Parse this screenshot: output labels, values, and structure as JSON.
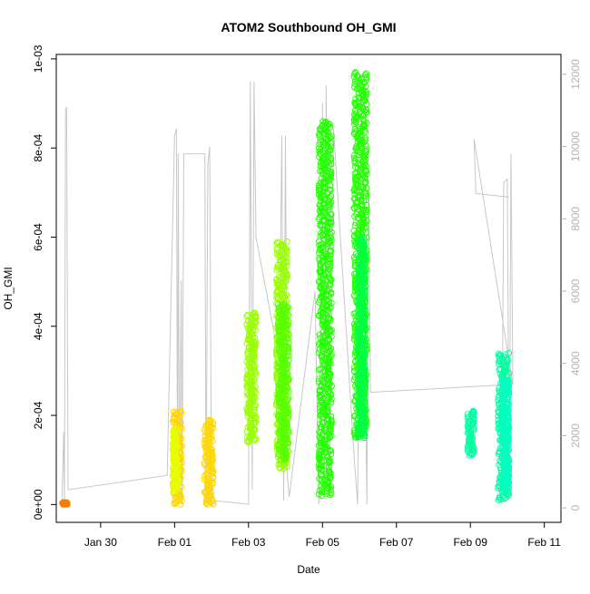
{
  "chart_data": {
    "type": "scatter",
    "title": "ATOM2 Southbound OH_GMI",
    "xlabel": "Date",
    "ylabel": "OH_GMI",
    "ylabel_right": "",
    "x_units": "days from Jan 28",
    "x_ticks": [
      {
        "label": "Jan 30",
        "value": 2
      },
      {
        "label": "Feb 01",
        "value": 4
      },
      {
        "label": "Feb 03",
        "value": 6
      },
      {
        "label": "Feb 05",
        "value": 8
      },
      {
        "label": "Feb 07",
        "value": 10
      },
      {
        "label": "Feb 09",
        "value": 12
      },
      {
        "label": "Feb 11",
        "value": 14
      }
    ],
    "y_ticks": [
      {
        "label": "0e+00",
        "value": 0
      },
      {
        "label": "2e-04",
        "value": 0.0002
      },
      {
        "label": "4e-04",
        "value": 0.0004
      },
      {
        "label": "6e-04",
        "value": 0.0006
      },
      {
        "label": "8e-04",
        "value": 0.0008
      },
      {
        "label": "1e-03",
        "value": 0.001
      }
    ],
    "y2_ticks": [
      {
        "label": "0",
        "value": 0
      },
      {
        "label": "2000",
        "value": 2000
      },
      {
        "label": "4000",
        "value": 4000
      },
      {
        "label": "6000",
        "value": 6000
      },
      {
        "label": "8000",
        "value": 8000
      },
      {
        "label": "10000",
        "value": 10000
      },
      {
        "label": "12000",
        "value": 12000
      }
    ],
    "xlim": [
      0.8,
      14.45
    ],
    "ylim": [
      -4e-05,
      0.00101
    ],
    "y2lim": [
      -400,
      12550
    ],
    "grid": false,
    "legend": "none",
    "series": [
      {
        "color": "#ff7a00",
        "segments": [
          {
            "x": [
              0.95,
              1.1
            ],
            "ymin": 0.0,
            "ymax": 5e-06
          }
        ]
      },
      {
        "color": "#ffd700",
        "segments": [
          {
            "x": [
              3.95,
              4.2
            ],
            "ymin": 0.0,
            "ymax": 0.00021
          },
          {
            "x": [
              4.8,
              5.05
            ],
            "ymin": 0.0,
            "ymax": 0.00019
          }
        ]
      },
      {
        "color": "#e6ff00",
        "segments": [
          {
            "x": [
              3.96,
              4.08
            ],
            "ymin": 3e-05,
            "ymax": 0.00017
          }
        ]
      },
      {
        "color": "#99ff00",
        "segments": [
          {
            "x": [
              5.95,
              6.2
            ],
            "ymin": 0.00014,
            "ymax": 0.00043
          },
          {
            "x": [
              6.75,
              7.05
            ],
            "ymin": 8e-05,
            "ymax": 0.00059
          }
        ]
      },
      {
        "color": "#55ff00",
        "segments": [
          {
            "x": [
              6.8,
              7.1
            ],
            "ymin": 0.0001,
            "ymax": 0.00045
          }
        ]
      },
      {
        "color": "#22ff00",
        "segments": [
          {
            "x": [
              7.9,
              8.25
            ],
            "ymin": 2e-05,
            "ymax": 0.00086
          },
          {
            "x": [
              8.85,
              9.2
            ],
            "ymin": 0.00015,
            "ymax": 0.00097
          }
        ]
      },
      {
        "color": "#00ff44",
        "segments": [
          {
            "x": [
              8.95,
              9.15
            ],
            "ymin": 0.00015,
            "ymax": 0.0006
          }
        ]
      },
      {
        "color": "#00ffa0",
        "segments": [
          {
            "x": [
              11.92,
              12.1
            ],
            "ymin": 0.00011,
            "ymax": 0.00021
          },
          {
            "x": [
              12.75,
              13.05
            ],
            "ymin": 1e-05,
            "ymax": 0.00034
          }
        ]
      },
      {
        "color": "#00ffc0",
        "segments": [
          {
            "x": [
              12.85,
              13.05
            ],
            "ymin": 3e-05,
            "ymax": 0.00028
          }
        ]
      }
    ],
    "altitude_trace": {
      "axis": "right",
      "color": "#c8c8c8",
      "points": [
        [
          0.95,
          0
        ],
        [
          1.0,
          2100
        ],
        [
          1.02,
          80
        ],
        [
          1.05,
          11000
        ],
        [
          1.08,
          11100
        ],
        [
          1.12,
          500
        ],
        [
          3.8,
          900
        ],
        [
          4.0,
          10300
        ],
        [
          4.05,
          10500
        ],
        [
          4.08,
          200
        ],
        [
          4.1,
          9800
        ],
        [
          4.13,
          100
        ],
        [
          4.18,
          6300
        ],
        [
          4.2,
          100
        ],
        [
          4.25,
          9800
        ],
        [
          4.82,
          9800
        ],
        [
          4.85,
          100
        ],
        [
          4.9,
          9500
        ],
        [
          4.95,
          10000
        ],
        [
          5.0,
          50
        ],
        [
          5.1,
          200
        ],
        [
          6.0,
          100
        ],
        [
          6.05,
          11800
        ],
        [
          6.1,
          500
        ],
        [
          6.15,
          11800
        ],
        [
          6.2,
          7500
        ],
        [
          6.7,
          4800
        ],
        [
          6.8,
          1200
        ],
        [
          6.9,
          10300
        ],
        [
          6.95,
          200
        ],
        [
          7.0,
          10300
        ],
        [
          7.05,
          900
        ],
        [
          7.1,
          300
        ],
        [
          7.8,
          6000
        ],
        [
          7.9,
          100
        ],
        [
          8.0,
          11200
        ],
        [
          8.05,
          300
        ],
        [
          8.1,
          11700
        ],
        [
          8.2,
          300
        ],
        [
          8.3,
          10500
        ],
        [
          8.85,
          1500
        ],
        [
          8.95,
          100
        ],
        [
          9.05,
          12000
        ],
        [
          9.1,
          8900
        ],
        [
          9.2,
          100
        ],
        [
          9.25,
          9100
        ],
        [
          9.3,
          3200
        ],
        [
          12.8,
          3400
        ],
        [
          12.85,
          100
        ],
        [
          12.9,
          9000
        ],
        [
          13.0,
          9100
        ],
        [
          13.05,
          200
        ],
        [
          13.1,
          9800
        ],
        [
          13.15,
          3400
        ],
        [
          12.1,
          10200
        ],
        [
          12.15,
          8700
        ],
        [
          13.05,
          8600
        ]
      ]
    }
  }
}
